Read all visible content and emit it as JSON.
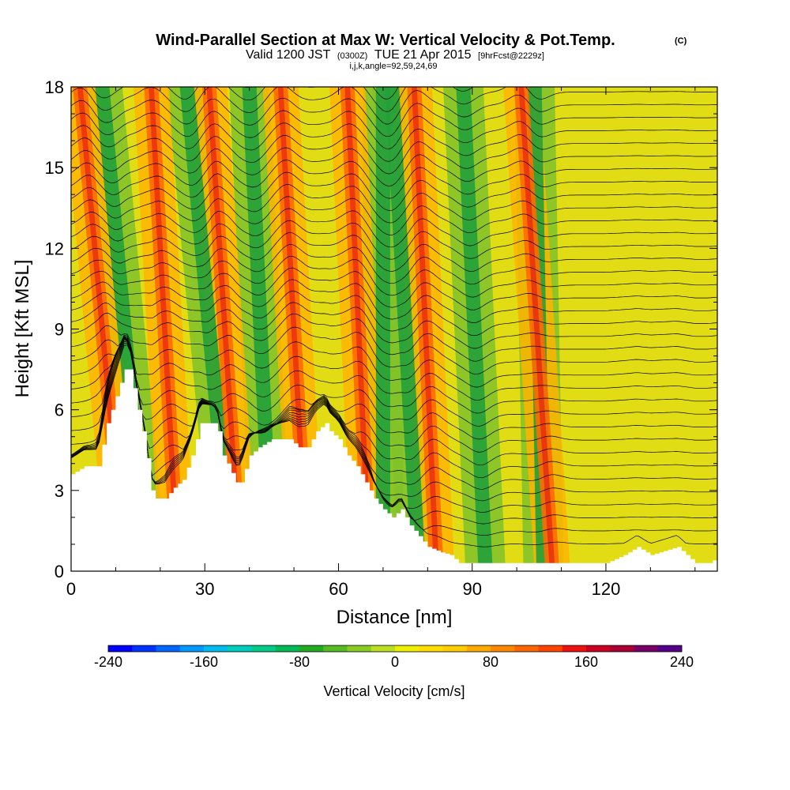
{
  "title": {
    "main": "Wind-Parallel Section at Max W: Vertical Velocity & Pot.Temp.",
    "copyright": "(C)",
    "line2_a": "Valid 1200 JST",
    "line2_b": "(0300Z)",
    "line2_c": "TUE 21 Apr 2015",
    "line2_d": "[9hrFcst@2229z]",
    "line3": "i,j,k,angle=92,59,24,69"
  },
  "chart_data": {
    "type": "heatmap",
    "xlabel": "Distance [nm]",
    "ylabel": "Height [Kft MSL]",
    "xlim": [
      0,
      145
    ],
    "ylim": [
      0,
      18
    ],
    "x_ticks": [
      "0",
      "30",
      "60",
      "90",
      "120"
    ],
    "x_tick_values": [
      0,
      30,
      60,
      90,
      120
    ],
    "y_ticks": [
      "0",
      "3",
      "6",
      "9",
      "12",
      "15",
      "18"
    ],
    "y_tick_values": [
      0,
      3,
      6,
      9,
      12,
      15,
      18
    ],
    "terrain_kft": [
      [
        0,
        3.6
      ],
      [
        3,
        3.9
      ],
      [
        6,
        3.9
      ],
      [
        8,
        5.5
      ],
      [
        10,
        6.5
      ],
      [
        12,
        7.5
      ],
      [
        13,
        7.5
      ],
      [
        14,
        6.8
      ],
      [
        16,
        5.2
      ],
      [
        17,
        4.2
      ],
      [
        18,
        3.0
      ],
      [
        19,
        2.7
      ],
      [
        21,
        2.7
      ],
      [
        23,
        3.1
      ],
      [
        25,
        3.4
      ],
      [
        27,
        4.3
      ],
      [
        29,
        5.5
      ],
      [
        32,
        5.5
      ],
      [
        33,
        5.2
      ],
      [
        34,
        4.3
      ],
      [
        35,
        4.0
      ],
      [
        37,
        3.3
      ],
      [
        38,
        3.3
      ],
      [
        39,
        3.8
      ],
      [
        40,
        4.3
      ],
      [
        42,
        4.6
      ],
      [
        45,
        4.9
      ],
      [
        49,
        4.9
      ],
      [
        51,
        4.6
      ],
      [
        53,
        4.6
      ],
      [
        55,
        5.2
      ],
      [
        57,
        5.5
      ],
      [
        58,
        5.2
      ],
      [
        60,
        4.9
      ],
      [
        62,
        4.3
      ],
      [
        64,
        3.9
      ],
      [
        66,
        3.3
      ],
      [
        68,
        2.7
      ],
      [
        70,
        2.3
      ],
      [
        72,
        2.0
      ],
      [
        74,
        2.3
      ],
      [
        76,
        1.7
      ],
      [
        78,
        1.3
      ],
      [
        80,
        0.9
      ],
      [
        83,
        0.7
      ],
      [
        85,
        0.6
      ],
      [
        87,
        0.3
      ],
      [
        120,
        0.3
      ],
      [
        124,
        0.6
      ],
      [
        127,
        0.9
      ],
      [
        130,
        0.6
      ],
      [
        136,
        0.9
      ],
      [
        138,
        0.6
      ],
      [
        140,
        0.3
      ],
      [
        143,
        0.3
      ],
      [
        145,
        0.5
      ]
    ],
    "updraft_bands_nm_base_top": [
      [
        12,
        2
      ],
      [
        24,
        18
      ],
      [
        38,
        31
      ],
      [
        53,
        47
      ],
      [
        67,
        62
      ],
      [
        82,
        77
      ],
      [
        108,
        101
      ]
    ],
    "downdraft_bands_nm_base_top": [
      [
        17,
        7
      ],
      [
        36,
        26
      ],
      [
        45,
        40
      ],
      [
        70,
        70
      ],
      [
        78,
        72
      ],
      [
        93,
        88
      ],
      [
        106,
        104
      ]
    ],
    "colorbar": {
      "label": "Vertical Velocity [cm/s]",
      "tick_labels": [
        "-240",
        "-160",
        "-80",
        "0",
        "80",
        "160",
        "240"
      ],
      "tick_values": [
        -240,
        -160,
        -80,
        0,
        80,
        160,
        240
      ],
      "colors": [
        "#0000ff",
        "#0033ff",
        "#0066ff",
        "#0099ff",
        "#00bbee",
        "#00ccbb",
        "#00cc88",
        "#00bb55",
        "#22aa22",
        "#55bb22",
        "#88cc22",
        "#bbdd22",
        "#eeee00",
        "#ffdd00",
        "#ffcc00",
        "#ffaa00",
        "#ff8800",
        "#ff6600",
        "#ff4400",
        "#ee1111",
        "#cc0022",
        "#aa0033",
        "#770066",
        "#550088"
      ]
    }
  }
}
